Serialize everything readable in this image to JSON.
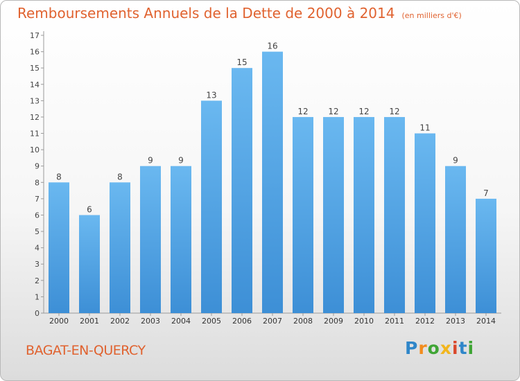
{
  "chart_data": {
    "type": "bar",
    "title": "Remboursements Annuels de la Dette de 2000 à 2014",
    "unit_note": "(en milliers d'€)",
    "categories": [
      "2000",
      "2001",
      "2002",
      "2003",
      "2004",
      "2005",
      "2006",
      "2007",
      "2008",
      "2009",
      "2010",
      "2011",
      "2012",
      "2013",
      "2014"
    ],
    "values": [
      8,
      6,
      8,
      9,
      9,
      13,
      15,
      16,
      12,
      12,
      12,
      12,
      11,
      9,
      7
    ],
    "ylim": [
      0,
      17
    ],
    "yticks": [
      0,
      1,
      2,
      3,
      4,
      5,
      6,
      7,
      8,
      9,
      10,
      11,
      12,
      13,
      14,
      15,
      16,
      17
    ],
    "xlabel": "",
    "ylabel": "",
    "bar_color": "#3d8fd6",
    "bar_color_light": "#6ab8f0",
    "title_color": "#e0622f"
  },
  "footer": {
    "town": "BAGAT-EN-QUERCY",
    "logo_letters": [
      "P",
      "r",
      "o",
      "x",
      "i",
      "t",
      "i"
    ],
    "logo_colors": [
      "#2f86c9",
      "#f28c1e",
      "#3fa535",
      "#f2b61e",
      "#d9472b",
      "#2f86c9",
      "#3fa535"
    ]
  }
}
